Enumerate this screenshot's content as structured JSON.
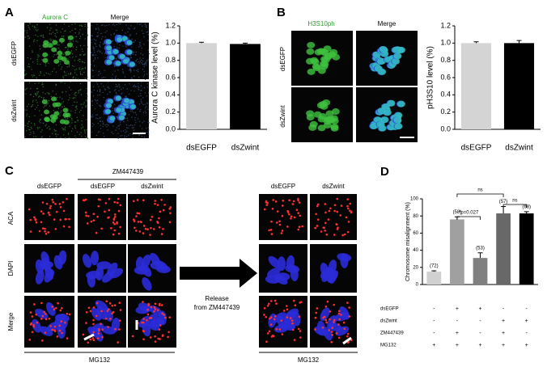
{
  "panels": {
    "a": {
      "label": "A",
      "columns": [
        "Aurora C",
        "Merge"
      ],
      "rows": [
        "dsEGFP",
        "dsZwint"
      ]
    },
    "b": {
      "label": "B",
      "columns": [
        "H3S10ph",
        "Merge"
      ],
      "rows": [
        "dsEGFP",
        "dsZwint"
      ]
    },
    "c": {
      "label": "C",
      "columns": [
        "dsEGFP",
        "dsEGFP",
        "dsZwint",
        "dsEGFP",
        "dsZwint"
      ],
      "group": "ZM447439",
      "rows": [
        "ACA",
        "DAPI",
        "Merge"
      ],
      "treatment_left": "MG132",
      "treatment_right": "MG132",
      "release": [
        "Release",
        "from ZM447439"
      ]
    },
    "d": {
      "label": "D"
    }
  },
  "chart_data": [
    {
      "type": "bar",
      "ylabel": "Aurora C kinase level (%)",
      "categories": [
        "dsEGFP",
        "dsZwint"
      ],
      "values": [
        1.0,
        0.99
      ],
      "errors": [
        0.01,
        0.01
      ],
      "colors": [
        "#d4d4d4",
        "#000000"
      ],
      "ylim": [
        0,
        1.2
      ],
      "yticks": [
        {
          "value": 0,
          "label": "0.0"
        },
        0.2,
        0.4,
        0.6,
        0.8,
        {
          "value": 1,
          "label": "1.0"
        },
        1.2
      ]
    },
    {
      "type": "bar",
      "ylabel": "pH3S10 level (%)",
      "categories": [
        "dsEGFP",
        "dsZwint"
      ],
      "values": [
        1.0,
        1.0
      ],
      "errors": [
        0.015,
        0.03
      ],
      "colors": [
        "#d4d4d4",
        "#000000"
      ],
      "ylim": [
        0,
        1.2
      ],
      "yticks": [
        {
          "value": 0,
          "label": "0.0"
        },
        0.2,
        0.4,
        0.6,
        0.8,
        {
          "value": 1,
          "label": "1.0"
        },
        1.2
      ]
    },
    {
      "type": "bar",
      "ylabel": "Chromosome misalignment (%)",
      "values": [
        15,
        76,
        31,
        83,
        83
      ],
      "errors": [
        1,
        3,
        6,
        8,
        2
      ],
      "colors": [
        "#d0d0d0",
        "#a0a0a0",
        "#808080",
        "#686868",
        "#000000"
      ],
      "n_labels": [
        "(72)",
        "(58)",
        "(53)",
        "(57)",
        "(68)"
      ],
      "ylim": [
        0,
        100
      ],
      "yticks": [
        0,
        20,
        40,
        60,
        80,
        100
      ],
      "annotations": [
        "*p=0.027",
        "ns",
        "ns"
      ],
      "conditions": [
        {
          "label": "dsEGFP",
          "marks": [
            "-",
            "+",
            "+",
            "-",
            "-"
          ]
        },
        {
          "label": "dsZwint",
          "marks": [
            "-",
            "-",
            "-",
            "+",
            "+"
          ]
        },
        {
          "label": "ZM447439",
          "marks": [
            "-",
            "+",
            "-",
            "+",
            "-"
          ]
        },
        {
          "label": "MG132",
          "marks": [
            "+",
            "+",
            "+",
            "+",
            "+"
          ]
        }
      ]
    }
  ]
}
